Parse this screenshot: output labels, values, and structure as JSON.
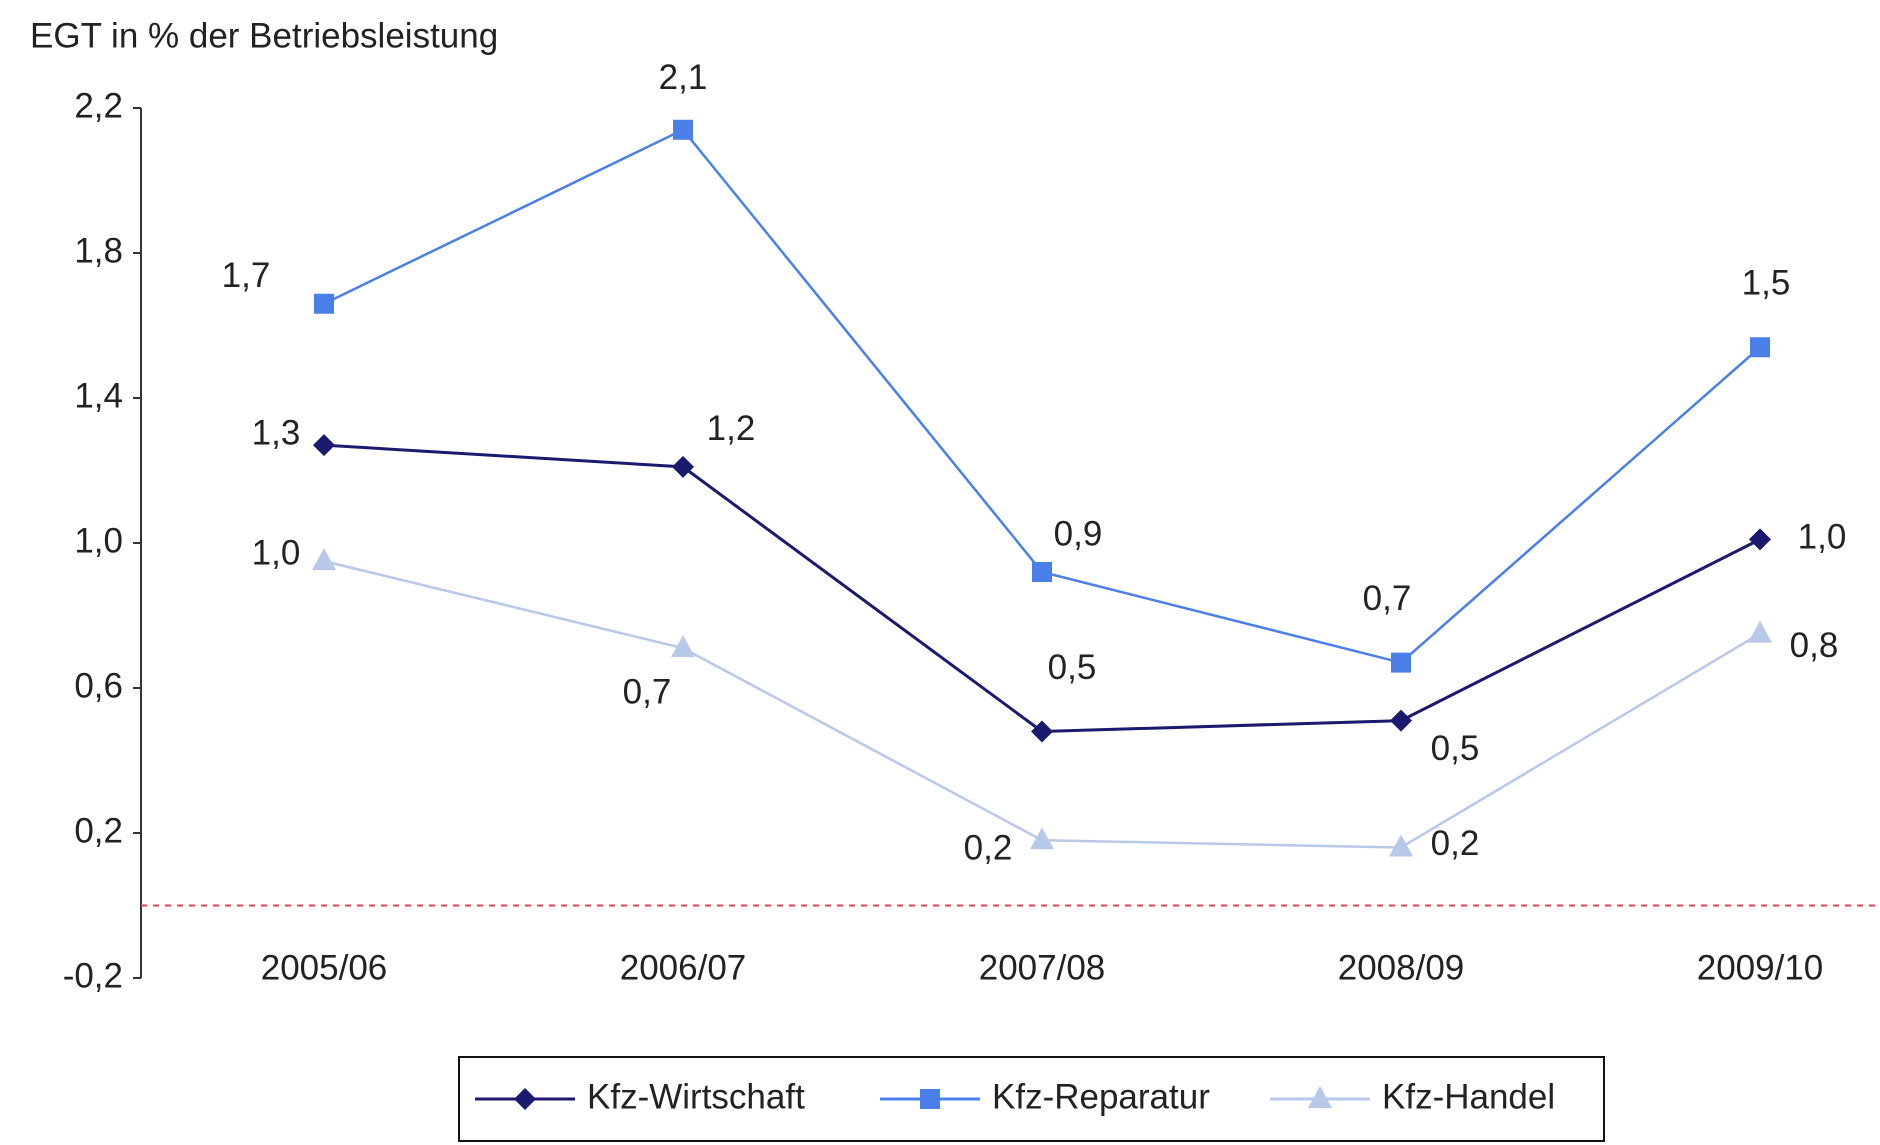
{
  "chart_data": {
    "type": "line",
    "title": "EGT in % der Betriebsleistung",
    "categories": [
      "2005/06",
      "2006/07",
      "2007/08",
      "2008/09",
      "2009/10"
    ],
    "series": [
      {
        "name": "Kfz-Wirtschaft",
        "color": "#1a1a6e",
        "marker": "diamond",
        "values": [
          1.27,
          1.21,
          0.48,
          0.51,
          1.01
        ],
        "value_labels": [
          "1,3",
          "1,2",
          "0,5",
          "0,5",
          "1,0"
        ]
      },
      {
        "name": "Kfz-Reparatur",
        "color": "#4a7fe8",
        "marker": "square",
        "values": [
          1.66,
          2.14,
          0.92,
          0.67,
          1.54
        ],
        "value_labels": [
          "1,7",
          "2,1",
          "0,9",
          "0,7",
          "1,5"
        ]
      },
      {
        "name": "Kfz-Handel",
        "color": "#b8c8e8",
        "marker": "triangle",
        "values": [
          0.95,
          0.71,
          0.18,
          0.16,
          0.75
        ],
        "value_labels": [
          "1,0",
          "0,7",
          "0,2",
          "0,2",
          "0,8"
        ]
      }
    ],
    "ylim": [
      -0.2,
      2.2
    ],
    "yticks": [
      {
        "value": -0.2,
        "label": "-0,2"
      },
      {
        "value": 0.2,
        "label": "0,2"
      },
      {
        "value": 0.6,
        "label": "0,6"
      },
      {
        "value": 1.0,
        "label": "1,0"
      },
      {
        "value": 1.4,
        "label": "1,4"
      },
      {
        "value": 1.8,
        "label": "1,8"
      },
      {
        "value": 2.2,
        "label": "2,2"
      }
    ],
    "reference_line": {
      "value": 0,
      "color": "#e04050"
    },
    "legend": "bottom"
  }
}
